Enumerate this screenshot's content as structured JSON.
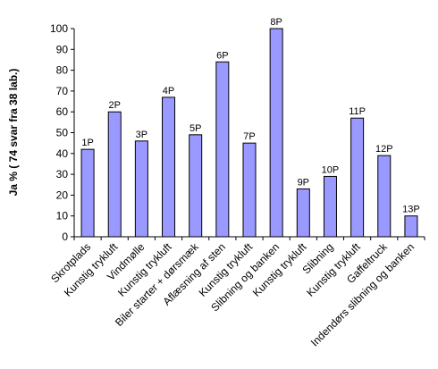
{
  "chart_data": {
    "type": "bar",
    "ylabel": "Ja % ( 74 svar fra 38 lab.)",
    "xlabel": "",
    "ylim": [
      0,
      100
    ],
    "yticks": [
      0,
      10,
      20,
      30,
      40,
      50,
      60,
      70,
      80,
      90,
      100
    ],
    "grid": false,
    "bar_color": "#9999ff",
    "categories": [
      "Skrotplads",
      "Kunstig trykluft",
      "Vindmølle",
      "Kunstig trykluft",
      "Biler starter + dørsmæk",
      "Aflæsning af sten",
      "Kunstig trykluft",
      "Slibning og banken",
      "Kunstig trykluft",
      "Slibning",
      "Kunstig trykluft",
      "Gaffeltruck",
      "Indendørs slibning og banken"
    ],
    "data_labels": [
      "1P",
      "2P",
      "3P",
      "4P",
      "5P",
      "6P",
      "7P",
      "8P",
      "9P",
      "10P",
      "11P",
      "12P",
      "13P"
    ],
    "values": [
      42,
      60,
      46,
      67,
      49,
      84,
      45,
      100,
      23,
      29,
      57,
      39,
      10
    ]
  }
}
